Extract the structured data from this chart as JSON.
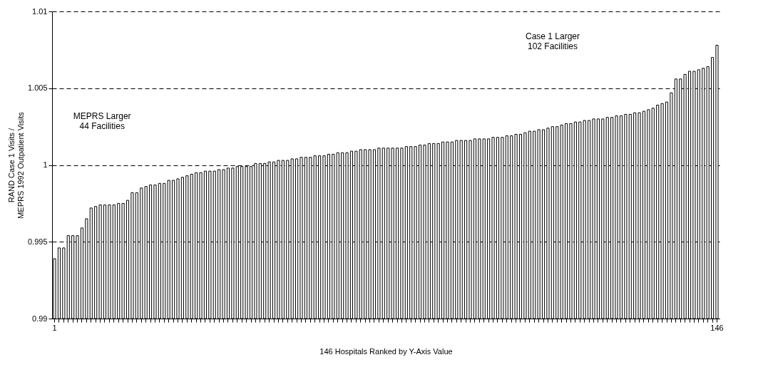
{
  "chart_data": {
    "type": "bar",
    "xlabel": "146 Hospitals Ranked by Y-Axis Value",
    "ylabel": "RAND Case 1 Visits /\nMEPRS 1992 Outpatient Visits",
    "categories": [
      "1",
      null,
      null,
      null,
      null,
      null,
      null,
      null,
      null,
      null,
      null,
      null,
      null,
      null,
      null,
      null,
      null,
      null,
      null,
      null,
      null,
      null,
      null,
      null,
      null,
      null,
      null,
      null,
      null,
      null,
      null,
      null,
      null,
      null,
      null,
      null,
      null,
      null,
      null,
      null,
      null,
      null,
      null,
      null,
      null,
      null,
      null,
      null,
      null,
      null,
      null,
      null,
      null,
      null,
      null,
      null,
      null,
      null,
      null,
      null,
      null,
      null,
      null,
      null,
      null,
      null,
      null,
      null,
      null,
      null,
      null,
      null,
      null,
      null,
      null,
      null,
      null,
      null,
      null,
      null,
      null,
      null,
      null,
      null,
      null,
      null,
      null,
      null,
      null,
      null,
      null,
      null,
      null,
      null,
      null,
      null,
      null,
      null,
      null,
      null,
      null,
      null,
      null,
      null,
      null,
      null,
      null,
      null,
      null,
      null,
      null,
      null,
      null,
      null,
      null,
      null,
      null,
      null,
      null,
      null,
      null,
      null,
      null,
      null,
      null,
      null,
      null,
      null,
      null,
      null,
      null,
      null,
      null,
      null,
      null,
      null,
      null,
      null,
      null,
      null,
      null,
      null,
      null,
      null,
      null,
      "146"
    ],
    "values": [
      0.9939,
      0.9946,
      0.9946,
      0.9954,
      0.9954,
      0.9954,
      0.9959,
      0.9965,
      0.9972,
      0.9973,
      0.9974,
      0.9974,
      0.9974,
      0.9974,
      0.9975,
      0.9975,
      0.9977,
      0.9982,
      0.9982,
      0.9985,
      0.9986,
      0.9987,
      0.9987,
      0.9988,
      0.9988,
      0.999,
      0.999,
      0.9991,
      0.9992,
      0.9993,
      0.9994,
      0.9995,
      0.9995,
      0.9996,
      0.9996,
      0.9996,
      0.9997,
      0.9997,
      0.9998,
      0.9998,
      0.9999,
      0.9999,
      0.9999,
      0.9999,
      1.0001,
      1.0001,
      1.0001,
      1.0002,
      1.0002,
      1.0003,
      1.0003,
      1.0003,
      1.0004,
      1.0004,
      1.0005,
      1.0005,
      1.0005,
      1.0006,
      1.0006,
      1.0006,
      1.0007,
      1.0007,
      1.0008,
      1.0008,
      1.0008,
      1.0009,
      1.0009,
      1.001,
      1.001,
      1.001,
      1.001,
      1.0011,
      1.0011,
      1.0011,
      1.0011,
      1.0011,
      1.0011,
      1.0012,
      1.0012,
      1.0012,
      1.0013,
      1.0013,
      1.0014,
      1.0014,
      1.0014,
      1.0015,
      1.0015,
      1.0015,
      1.0016,
      1.0016,
      1.0016,
      1.0016,
      1.0017,
      1.0017,
      1.0017,
      1.0017,
      1.0018,
      1.0018,
      1.0018,
      1.0019,
      1.0019,
      1.002,
      1.002,
      1.0021,
      1.0022,
      1.0022,
      1.0023,
      1.0023,
      1.0024,
      1.0025,
      1.0025,
      1.0026,
      1.0027,
      1.0027,
      1.0028,
      1.0028,
      1.0029,
      1.0029,
      1.003,
      1.003,
      1.003,
      1.0031,
      1.0031,
      1.0032,
      1.0032,
      1.0033,
      1.0033,
      1.0034,
      1.0034,
      1.0035,
      1.0036,
      1.0037,
      1.0039,
      1.004,
      1.0041,
      1.0047,
      1.0056,
      1.0056,
      1.0059,
      1.0061,
      1.0061,
      1.0062,
      1.0063,
      1.0064,
      1.007,
      1.0078
    ],
    "color": "#ffffff",
    "ylim": [
      0.99,
      1.01
    ],
    "yticks": [
      0.99,
      0.995,
      1,
      1.005,
      1.01
    ],
    "grid": "y",
    "annotations": [
      "MEPRS Larger\n44 Facilities",
      "Case 1 Larger\n102 Facilities"
    ]
  }
}
